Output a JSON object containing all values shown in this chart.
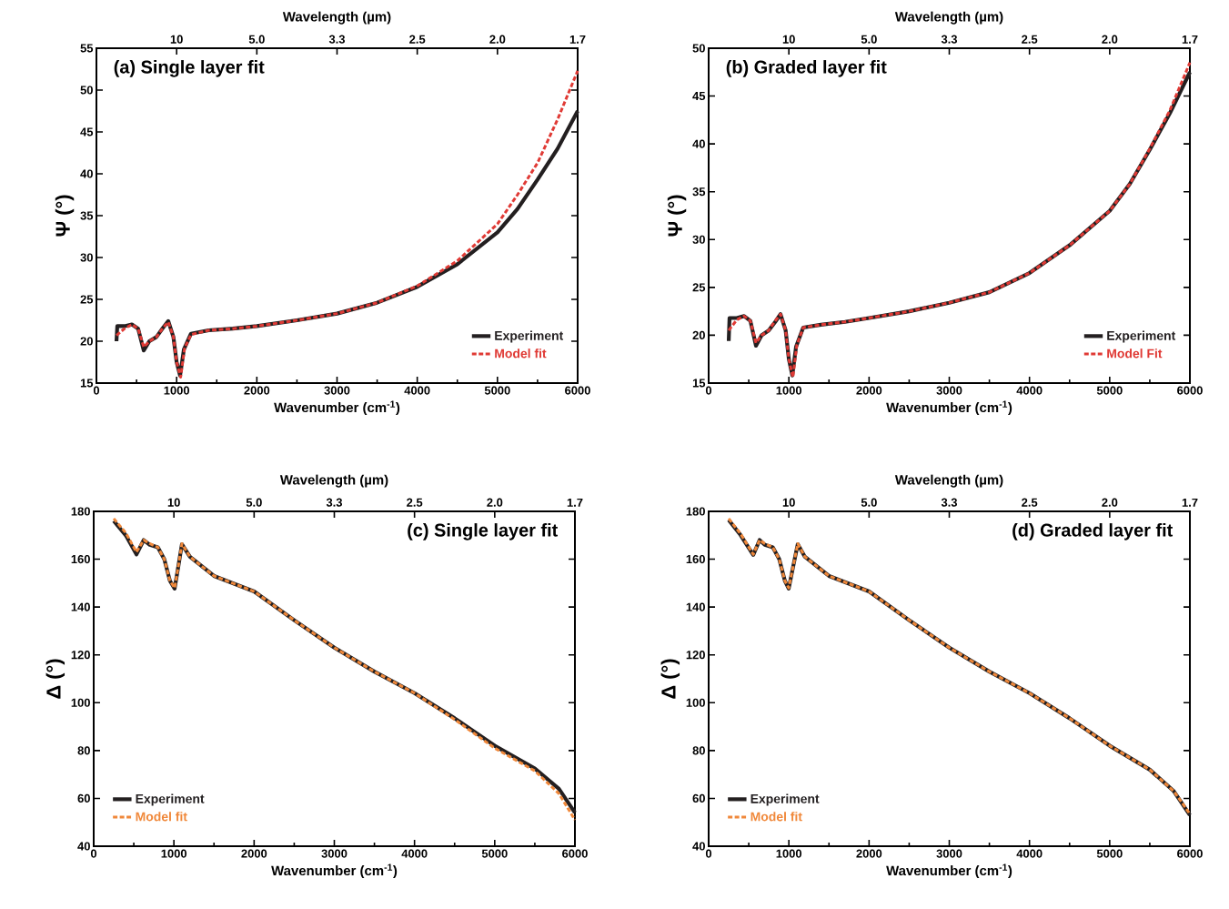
{
  "chart_data": [
    {
      "type": "line",
      "title": "(a) Single layer fit",
      "xlabel": "Wavenumber (cm$^{-1}$)",
      "ylabel": "Ψ (°)",
      "x2label": "Wavelength (µm)",
      "xlim": [
        0,
        6000
      ],
      "xticks": [
        0,
        1000,
        2000,
        3000,
        4000,
        5000,
        6000
      ],
      "annotations": [
        {
          "text": "10",
          "x": 1000
        },
        {
          "text": "5.0",
          "x": 2000
        },
        {
          "text": "3.3",
          "x": 3000
        },
        {
          "text": "2.5",
          "x": 4000
        },
        {
          "text": "2.0",
          "x": 5000
        },
        {
          "text": "1.7",
          "x": 6000
        }
      ],
      "ylim": [
        15,
        55
      ],
      "yticks": [
        15,
        20,
        25,
        30,
        35,
        40,
        45,
        50,
        55
      ],
      "legend": "bottom right",
      "series": [
        {
          "name": "Experiment",
          "color": "#231f20",
          "line_style": "solid",
          "x": [
            250,
            260,
            350,
            442,
            520,
            590,
            660,
            748,
            830,
            896,
            960,
            1000,
            1043,
            1090,
            1179,
            1400,
            1700,
            2000,
            2500,
            3000,
            3500,
            4000,
            4500,
            5000,
            5250,
            5500,
            5750,
            6000
          ],
          "values": [
            20.0,
            21.8,
            21.8,
            22.0,
            21.5,
            18.9,
            20.0,
            20.5,
            21.6,
            22.4,
            20.5,
            17.5,
            15.9,
            19.0,
            20.9,
            21.3,
            21.5,
            21.8,
            22.5,
            23.3,
            24.6,
            26.5,
            29.2,
            33.0,
            35.8,
            39.3,
            43.0,
            47.5
          ]
        },
        {
          "name": "Model fit",
          "color": "#e03a35",
          "line_style": "dashed",
          "x": [
            250,
            350,
            442,
            520,
            590,
            660,
            748,
            830,
            896,
            960,
            1000,
            1050,
            1100,
            1180,
            1400,
            1700,
            2000,
            2500,
            3000,
            3500,
            4000,
            4500,
            5000,
            5250,
            5500,
            5750,
            6000
          ],
          "values": [
            20.7,
            21.5,
            22.0,
            21.5,
            19.3,
            20.0,
            20.5,
            21.6,
            22.3,
            20.5,
            17.5,
            15.7,
            19.2,
            20.8,
            21.3,
            21.5,
            21.8,
            22.5,
            23.3,
            24.6,
            26.6,
            29.6,
            34.0,
            37.5,
            41.3,
            46.5,
            52.3
          ]
        }
      ]
    },
    {
      "type": "line",
      "title": "(b) Graded layer fit",
      "xlabel": "Wavenumber (cm$^{-1}$)",
      "ylabel": "Ψ (°)",
      "x2label": "Wavelength (µm)",
      "xlim": [
        0,
        6000
      ],
      "xticks": [
        0,
        1000,
        2000,
        3000,
        4000,
        5000,
        6000
      ],
      "annotations": [
        {
          "text": "10",
          "x": 1000
        },
        {
          "text": "5.0",
          "x": 2000
        },
        {
          "text": "3.3",
          "x": 3000
        },
        {
          "text": "2.5",
          "x": 4000
        },
        {
          "text": "2.0",
          "x": 5000
        },
        {
          "text": "1.7",
          "x": 6000
        }
      ],
      "ylim": [
        15,
        50
      ],
      "yticks": [
        15,
        20,
        25,
        30,
        35,
        40,
        45,
        50
      ],
      "legend": "bottom right",
      "series": [
        {
          "name": "Experiment",
          "color": "#231f20",
          "line_style": "solid",
          "x": [
            250,
            260,
            350,
            442,
            520,
            590,
            660,
            748,
            830,
            896,
            960,
            1000,
            1043,
            1090,
            1179,
            1400,
            1700,
            2000,
            2500,
            3000,
            3500,
            4000,
            4500,
            5000,
            5250,
            5500,
            5750,
            6000
          ],
          "values": [
            19.4,
            21.8,
            21.8,
            22.0,
            21.5,
            18.9,
            20.0,
            20.5,
            21.4,
            22.2,
            20.5,
            17.5,
            15.8,
            18.8,
            20.8,
            21.1,
            21.4,
            21.8,
            22.5,
            23.4,
            24.5,
            26.5,
            29.4,
            33.0,
            35.8,
            39.4,
            43.2,
            47.5
          ]
        },
        {
          "name": "Model Fit",
          "color": "#e03a35",
          "line_style": "dashed",
          "x": [
            250,
            350,
            442,
            520,
            590,
            660,
            748,
            830,
            896,
            960,
            1000,
            1050,
            1100,
            1180,
            1400,
            1700,
            2000,
            2500,
            3000,
            3500,
            4000,
            4500,
            5000,
            5250,
            5500,
            5750,
            6000
          ],
          "values": [
            20.5,
            21.6,
            22.0,
            21.5,
            19.2,
            20.0,
            20.5,
            21.5,
            22.2,
            20.5,
            17.5,
            15.6,
            19.0,
            20.8,
            21.1,
            21.4,
            21.8,
            22.5,
            23.4,
            24.5,
            26.5,
            29.4,
            33.0,
            35.8,
            39.5,
            43.5,
            48.5
          ]
        }
      ]
    },
    {
      "type": "line",
      "title": "(c) Single layer fit",
      "xlabel": "Wavenumber (cm$^{-1}$)",
      "ylabel": "Δ (°)",
      "x2label": "Wavelength (µm)",
      "xlim": [
        0,
        6000
      ],
      "xticks": [
        0,
        1000,
        2000,
        3000,
        4000,
        5000,
        6000
      ],
      "annotations": [
        {
          "text": "10",
          "x": 1000
        },
        {
          "text": "5.0",
          "x": 2000
        },
        {
          "text": "3.3",
          "x": 3000
        },
        {
          "text": "2.5",
          "x": 4000
        },
        {
          "text": "2.0",
          "x": 5000
        },
        {
          "text": "1.7",
          "x": 6000
        }
      ],
      "ylim": [
        40,
        180
      ],
      "yticks": [
        40,
        60,
        80,
        100,
        120,
        140,
        160,
        180
      ],
      "legend": "bottom left",
      "series": [
        {
          "name": "Experiment",
          "color": "#231f20",
          "line_style": "solid",
          "x": [
            250,
            400,
            533,
            624,
            700,
            800,
            880,
            950,
            1009,
            1060,
            1100,
            1200,
            1500,
            2000,
            2500,
            3000,
            3500,
            4000,
            4500,
            5000,
            5500,
            5800,
            6000
          ],
          "values": [
            176,
            170,
            162,
            168,
            166,
            165,
            160,
            151,
            147.7,
            158,
            166.3,
            161,
            153,
            146.5,
            134.5,
            123,
            113,
            104,
            93.5,
            82,
            72.5,
            64,
            54
          ]
        },
        {
          "name": "Model fit",
          "color": "#f0883a",
          "line_style": "dashed",
          "x": [
            250,
            400,
            533,
            624,
            700,
            800,
            880,
            950,
            1009,
            1060,
            1100,
            1200,
            1500,
            2000,
            2500,
            3000,
            3500,
            4000,
            4500,
            5000,
            5500,
            5800,
            6000
          ],
          "values": [
            177,
            171,
            163,
            168,
            166.5,
            165,
            160,
            151,
            148,
            158,
            166.5,
            161,
            153,
            146.5,
            134.5,
            123,
            113,
            104,
            93,
            81,
            71.5,
            62,
            51
          ]
        }
      ]
    },
    {
      "type": "line",
      "title": "(d) Graded layer fit",
      "xlabel": "Wavenumber (cm$^{-1}$)",
      "ylabel": "Δ (°)",
      "x2label": "Wavelength (µm)",
      "xlim": [
        0,
        6000
      ],
      "xticks": [
        0,
        1000,
        2000,
        3000,
        4000,
        5000,
        6000
      ],
      "annotations": [
        {
          "text": "10",
          "x": 1000
        },
        {
          "text": "5.0",
          "x": 2000
        },
        {
          "text": "3.3",
          "x": 3000
        },
        {
          "text": "2.5",
          "x": 4000
        },
        {
          "text": "2.0",
          "x": 5000
        },
        {
          "text": "1.7",
          "x": 6000
        }
      ],
      "ylim": [
        40,
        180
      ],
      "yticks": [
        40,
        60,
        80,
        100,
        120,
        140,
        160,
        180
      ],
      "legend": "bottom left",
      "series": [
        {
          "name": "Experiment",
          "color": "#231f20",
          "line_style": "solid",
          "x": [
            250,
            400,
            556,
            635,
            700,
            800,
            880,
            950,
            998,
            1060,
            1111,
            1200,
            1500,
            2000,
            2500,
            3000,
            3500,
            4000,
            4500,
            5000,
            5500,
            5800,
            6000
          ],
          "values": [
            176.4,
            170,
            161.8,
            168,
            166,
            165,
            160,
            151,
            147.7,
            158,
            166.3,
            161,
            153,
            146.5,
            134.5,
            123,
            113,
            104,
            93.5,
            82,
            72,
            63,
            53
          ]
        },
        {
          "name": "Model fit",
          "color": "#f0883a",
          "line_style": "dashed",
          "x": [
            250,
            400,
            556,
            635,
            700,
            800,
            880,
            950,
            998,
            1060,
            1111,
            1200,
            1500,
            2000,
            2500,
            3000,
            3500,
            4000,
            4500,
            5000,
            5500,
            5800,
            6000
          ],
          "values": [
            177,
            170.5,
            162,
            168,
            166.5,
            165,
            160,
            151,
            148,
            158,
            166.5,
            161,
            153,
            146.5,
            134.5,
            123,
            113,
            104,
            93.5,
            82,
            72,
            63,
            53.5
          ]
        }
      ]
    }
  ]
}
